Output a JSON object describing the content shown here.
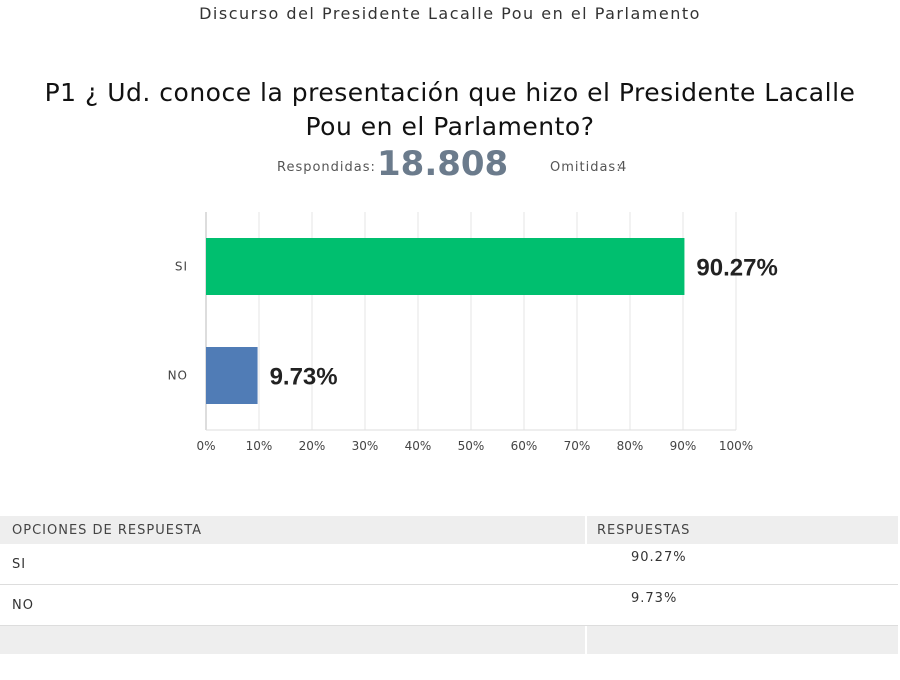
{
  "header": {
    "title": "Discurso del Presidente Lacalle Pou en el Parlamento"
  },
  "question": {
    "text": "P1 ¿ Ud. conoce la presentación que hizo el Presidente Lacalle Pou en el Parlamento?"
  },
  "stats": {
    "answered_label": "Respondidas:",
    "answered_value": "18.808",
    "skipped_label": "Omitidas:",
    "skipped_value": "4"
  },
  "chart_data": {
    "type": "bar",
    "orientation": "horizontal",
    "categories": [
      "SI",
      "NO"
    ],
    "values": [
      90.27,
      9.73
    ],
    "value_labels": [
      "90.27%",
      "9.73%"
    ],
    "xlim": [
      0,
      100
    ],
    "x_ticks": [
      "0%",
      "10%",
      "20%",
      "30%",
      "40%",
      "50%",
      "60%",
      "70%",
      "80%",
      "90%",
      "100%"
    ],
    "colors": [
      "#00bf6f",
      "#507cb6"
    ],
    "grid": true
  },
  "table": {
    "headers": [
      "OPCIONES DE RESPUESTA",
      "RESPUESTAS"
    ],
    "rows": [
      {
        "option": "SI",
        "value": "90.27%"
      },
      {
        "option": "NO",
        "value": "9.73%"
      }
    ]
  }
}
